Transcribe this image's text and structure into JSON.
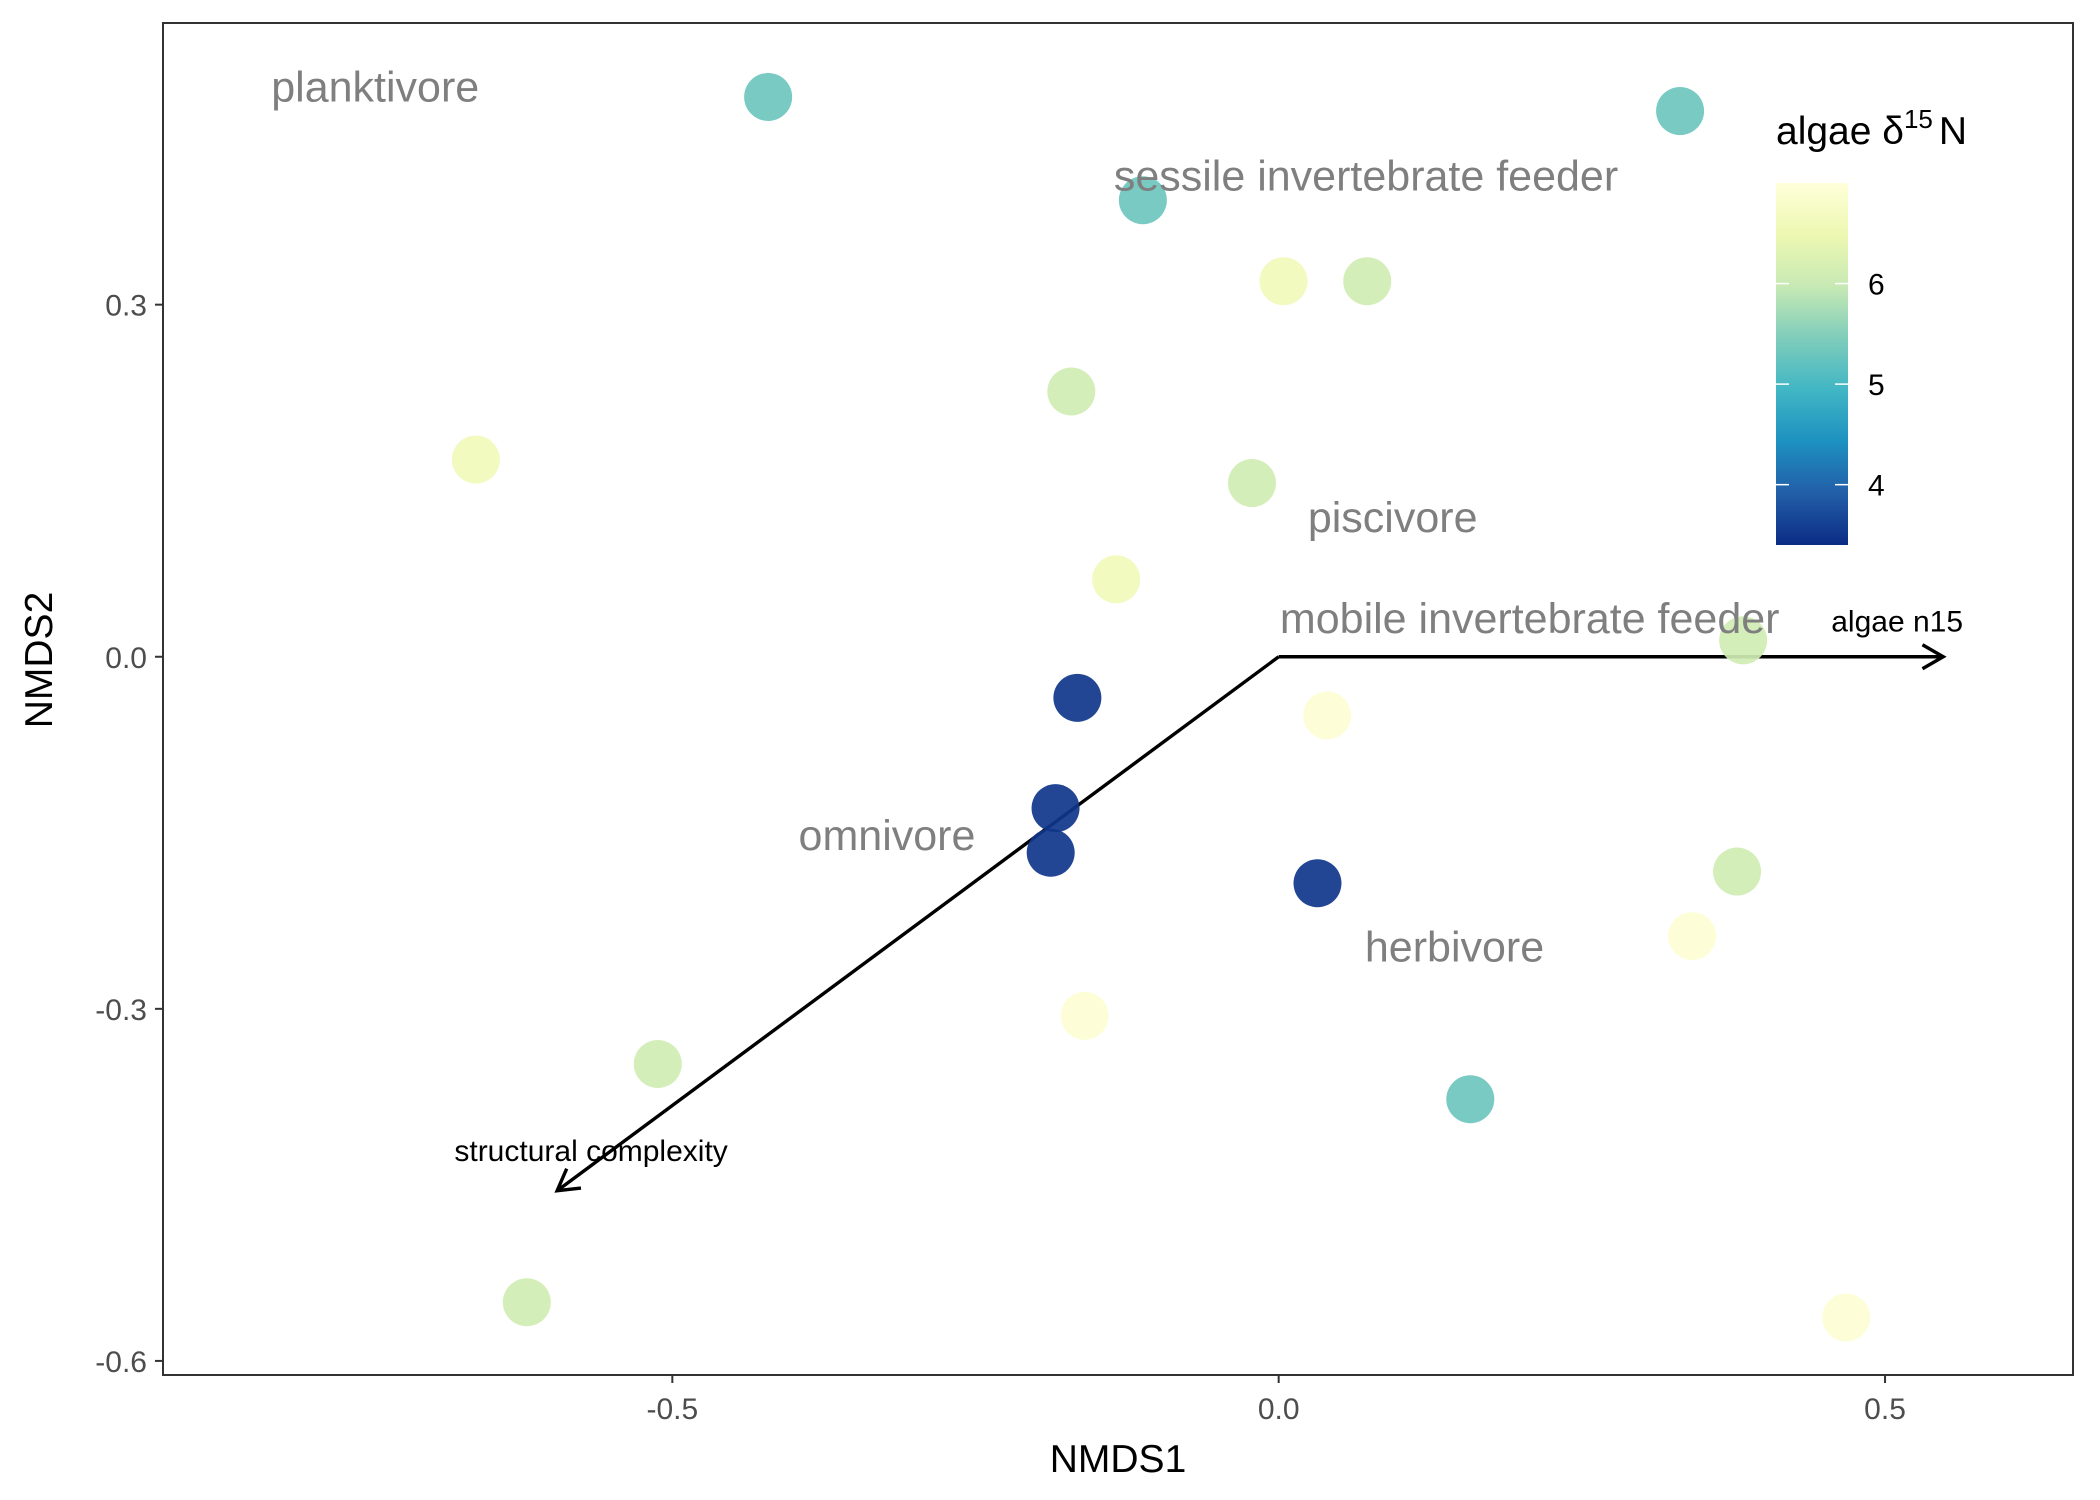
{
  "chart_data": {
    "type": "scatter",
    "xlabel": "NMDS1",
    "ylabel": "NMDS2",
    "xlim": [
      -0.92,
      0.655
    ],
    "ylim": [
      -0.612,
      0.54
    ],
    "x_ticks": [
      -0.5,
      0.0,
      0.5
    ],
    "x_tick_labels": [
      "-0.5",
      "0.0",
      "0.5"
    ],
    "y_ticks": [
      0.3,
      0.0,
      -0.3,
      -0.6
    ],
    "y_tick_labels": [
      "0.3",
      "0.0",
      "-0.3",
      "-0.6"
    ],
    "grid": false,
    "points": [
      {
        "x": -0.421,
        "y": 0.477,
        "algae_d15N": 5.3
      },
      {
        "x": 0.331,
        "y": 0.465,
        "algae_d15N": 5.3
      },
      {
        "x": -0.112,
        "y": 0.389,
        "algae_d15N": 5.3
      },
      {
        "x": 0.004,
        "y": 0.32,
        "algae_d15N": 6.6
      },
      {
        "x": 0.073,
        "y": 0.32,
        "algae_d15N": 6.1
      },
      {
        "x": -0.171,
        "y": 0.226,
        "algae_d15N": 6.1
      },
      {
        "x": -0.662,
        "y": 0.168,
        "algae_d15N": 6.6
      },
      {
        "x": -0.022,
        "y": 0.148,
        "algae_d15N": 6.1
      },
      {
        "x": -0.134,
        "y": 0.066,
        "algae_d15N": 6.6
      },
      {
        "x": 0.383,
        "y": 0.014,
        "algae_d15N": 6.1
      },
      {
        "x": -0.166,
        "y": -0.035,
        "algae_d15N": 3.5
      },
      {
        "x": 0.04,
        "y": -0.05,
        "algae_d15N": 6.95
      },
      {
        "x": -0.184,
        "y": -0.129,
        "algae_d15N": 3.5
      },
      {
        "x": -0.188,
        "y": -0.167,
        "algae_d15N": 3.5
      },
      {
        "x": 0.032,
        "y": -0.193,
        "algae_d15N": 3.5
      },
      {
        "x": 0.378,
        "y": -0.183,
        "algae_d15N": 6.1
      },
      {
        "x": 0.341,
        "y": -0.238,
        "algae_d15N": 6.95
      },
      {
        "x": -0.16,
        "y": -0.306,
        "algae_d15N": 6.95
      },
      {
        "x": -0.512,
        "y": -0.347,
        "algae_d15N": 6.1
      },
      {
        "x": 0.158,
        "y": -0.377,
        "algae_d15N": 5.3
      },
      {
        "x": -0.62,
        "y": -0.55,
        "algae_d15N": 6.1
      },
      {
        "x": 0.468,
        "y": -0.563,
        "algae_d15N": 6.95
      }
    ],
    "group_labels": [
      {
        "text": "planktivore",
        "x": -0.745,
        "y": 0.486
      },
      {
        "text": "sessile invertebrate feeder",
        "x": 0.072,
        "y": 0.41
      },
      {
        "text": "piscivore",
        "x": 0.094,
        "y": 0.119
      },
      {
        "text": "mobile invertebrate feeder",
        "x": 0.207,
        "y": 0.033
      },
      {
        "text": "omnivore",
        "x": -0.323,
        "y": -0.152
      },
      {
        "text": "herbivore",
        "x": 0.145,
        "y": -0.247
      }
    ],
    "vectors": [
      {
        "label": "algae n15",
        "x": 0.548,
        "y": 0.0,
        "label_x": 0.51,
        "label_y": 0.03
      },
      {
        "label": "structural complexity",
        "x": -0.595,
        "y": -0.455,
        "label_x": -0.567,
        "label_y": -0.421
      }
    ],
    "colorbar": {
      "title_main": "algae δ",
      "title_sup": "15",
      "title_end": "N",
      "min": 3.4,
      "max": 7.0,
      "ticks": [
        4,
        5,
        6
      ],
      "tick_labels": [
        "4",
        "5",
        "6"
      ],
      "colors": [
        "#0c2c84",
        "#225ea8",
        "#1d91c0",
        "#41b6c4",
        "#7fcdbb",
        "#c7e9b4",
        "#edf8b1",
        "#ffffd9"
      ]
    }
  }
}
